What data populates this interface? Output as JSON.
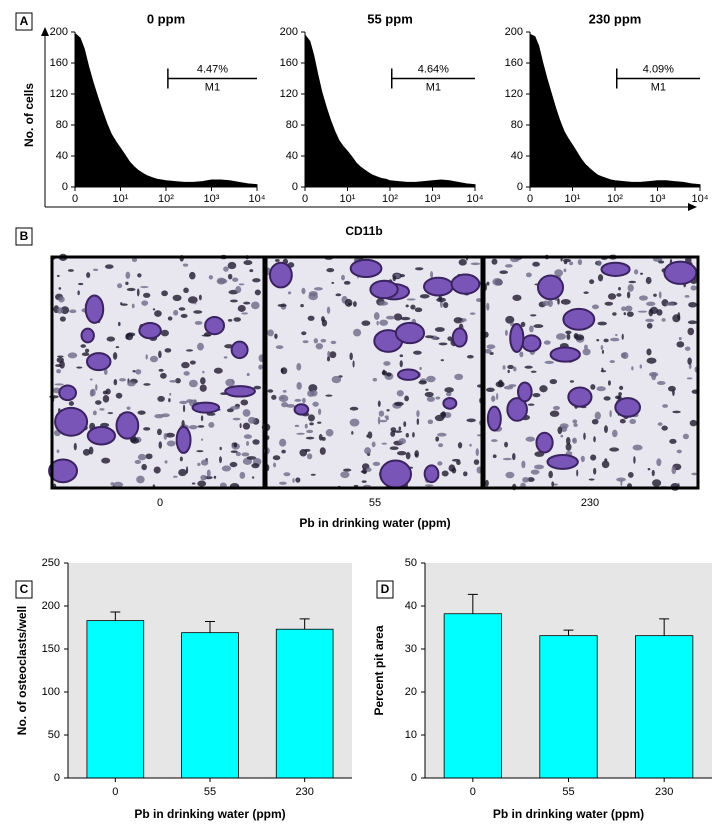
{
  "panel_a": {
    "label": "A",
    "ylabel": "No. of cells",
    "xlabel": "CD11b"
  },
  "images": {
    "label": "B",
    "captions": [
      "0",
      "55",
      "230"
    ],
    "xlabel": "Pb in drinking water (ppm)"
  },
  "chart_data": [
    {
      "type": "area",
      "title": "0 ppm",
      "log_x": true,
      "color": "#000000",
      "x": [
        1,
        1.3,
        1.6,
        2,
        2.5,
        3.2,
        4,
        5,
        6.3,
        8,
        10,
        13,
        16,
        20,
        25,
        32,
        40,
        50,
        63,
        80,
        100,
        160,
        250,
        400,
        630,
        1000,
        1600,
        2500,
        4000,
        6300,
        10000
      ],
      "values": [
        198,
        192,
        178,
        155,
        135,
        115,
        98,
        82,
        68,
        58,
        50,
        40,
        32,
        26,
        21,
        17,
        14,
        12,
        10,
        9,
        8,
        7,
        6,
        6,
        7,
        9,
        9,
        8,
        6,
        4,
        3
      ],
      "xlim": [
        1,
        10000
      ],
      "ylim": [
        0,
        200
      ],
      "xticks": [
        {
          "value": 1,
          "label": "0"
        },
        {
          "value": 10,
          "label": "10¹"
        },
        {
          "value": 100,
          "label": "10²"
        },
        {
          "value": 1000,
          "label": "10³"
        },
        {
          "value": 10000,
          "label": "10⁴"
        }
      ],
      "yticks": [
        0,
        40,
        80,
        120,
        160,
        200
      ],
      "gate": {
        "name": "M1",
        "value": 4.47,
        "value_label": "4.47%",
        "from": 110,
        "to": 10000,
        "level": 140
      }
    },
    {
      "type": "area",
      "title": "55 ppm",
      "log_x": true,
      "color": "#000000",
      "x": [
        1,
        1.3,
        1.6,
        2,
        2.5,
        3.2,
        4,
        5,
        6.3,
        8,
        10,
        13,
        16,
        20,
        25,
        32,
        40,
        50,
        63,
        80,
        100,
        160,
        250,
        400,
        630,
        1000,
        1600,
        2500,
        4000,
        6300,
        10000
      ],
      "values": [
        196,
        188,
        170,
        145,
        122,
        102,
        86,
        72,
        60,
        52,
        46,
        38,
        31,
        26,
        22,
        18,
        15,
        13,
        11,
        10,
        8,
        7,
        6,
        6,
        7,
        8,
        9,
        8,
        6,
        4,
        3
      ],
      "xlim": [
        1,
        10000
      ],
      "ylim": [
        0,
        200
      ],
      "xticks": [
        {
          "value": 1,
          "label": "0"
        },
        {
          "value": 10,
          "label": "10¹"
        },
        {
          "value": 100,
          "label": "10²"
        },
        {
          "value": 1000,
          "label": "10³"
        },
        {
          "value": 10000,
          "label": "10⁴"
        }
      ],
      "yticks": [
        0,
        40,
        80,
        120,
        160,
        200
      ],
      "gate": {
        "name": "M1",
        "value": 4.64,
        "value_label": "4.64%",
        "from": 110,
        "to": 10000,
        "level": 140
      }
    },
    {
      "type": "area",
      "title": "230 ppm",
      "log_x": true,
      "color": "#000000",
      "x": [
        1,
        1.3,
        1.6,
        2,
        2.5,
        3.2,
        4,
        5,
        6.3,
        8,
        10,
        13,
        16,
        20,
        25,
        32,
        40,
        50,
        63,
        80,
        100,
        160,
        250,
        400,
        630,
        1000,
        1600,
        2500,
        4000,
        6300,
        10000
      ],
      "values": [
        197,
        194,
        182,
        160,
        140,
        120,
        102,
        86,
        72,
        62,
        54,
        44,
        36,
        29,
        24,
        19,
        15,
        13,
        11,
        9,
        8,
        7,
        6,
        6,
        7,
        8,
        8,
        7,
        6,
        4,
        3
      ],
      "xlim": [
        1,
        10000
      ],
      "ylim": [
        0,
        200
      ],
      "xticks": [
        {
          "value": 1,
          "label": "0"
        },
        {
          "value": 10,
          "label": "10¹"
        },
        {
          "value": 100,
          "label": "10²"
        },
        {
          "value": 1000,
          "label": "10³"
        },
        {
          "value": 10000,
          "label": "10⁴"
        }
      ],
      "yticks": [
        0,
        40,
        80,
        120,
        160,
        200
      ],
      "gate": {
        "name": "M1",
        "value": 4.09,
        "value_label": "4.09%",
        "from": 110,
        "to": 10000,
        "level": 140
      }
    },
    {
      "type": "bar",
      "panel": "C",
      "xlabel": "Pb in drinking water (ppm)",
      "ylabel": "No. of osteoclasts/well",
      "categories": [
        "0",
        "55",
        "230"
      ],
      "values": [
        183,
        169,
        173
      ],
      "errors": [
        10,
        13,
        12
      ],
      "color": "#00ffff",
      "background": "#e6e6e6",
      "ylim": [
        0,
        250
      ],
      "yticks": [
        0,
        50,
        100,
        150,
        200,
        250
      ]
    },
    {
      "type": "bar",
      "panel": "D",
      "xlabel": "Pb in drinking water (ppm)",
      "ylabel": "Percent pit area",
      "categories": [
        "0",
        "55",
        "230"
      ],
      "values": [
        38.2,
        33.1,
        33.1
      ],
      "errors": [
        4.5,
        1.3,
        3.9
      ],
      "color": "#00ffff",
      "background": "#e6e6e6",
      "ylim": [
        0,
        50
      ],
      "yticks": [
        0,
        10,
        20,
        30,
        40,
        50
      ]
    }
  ]
}
